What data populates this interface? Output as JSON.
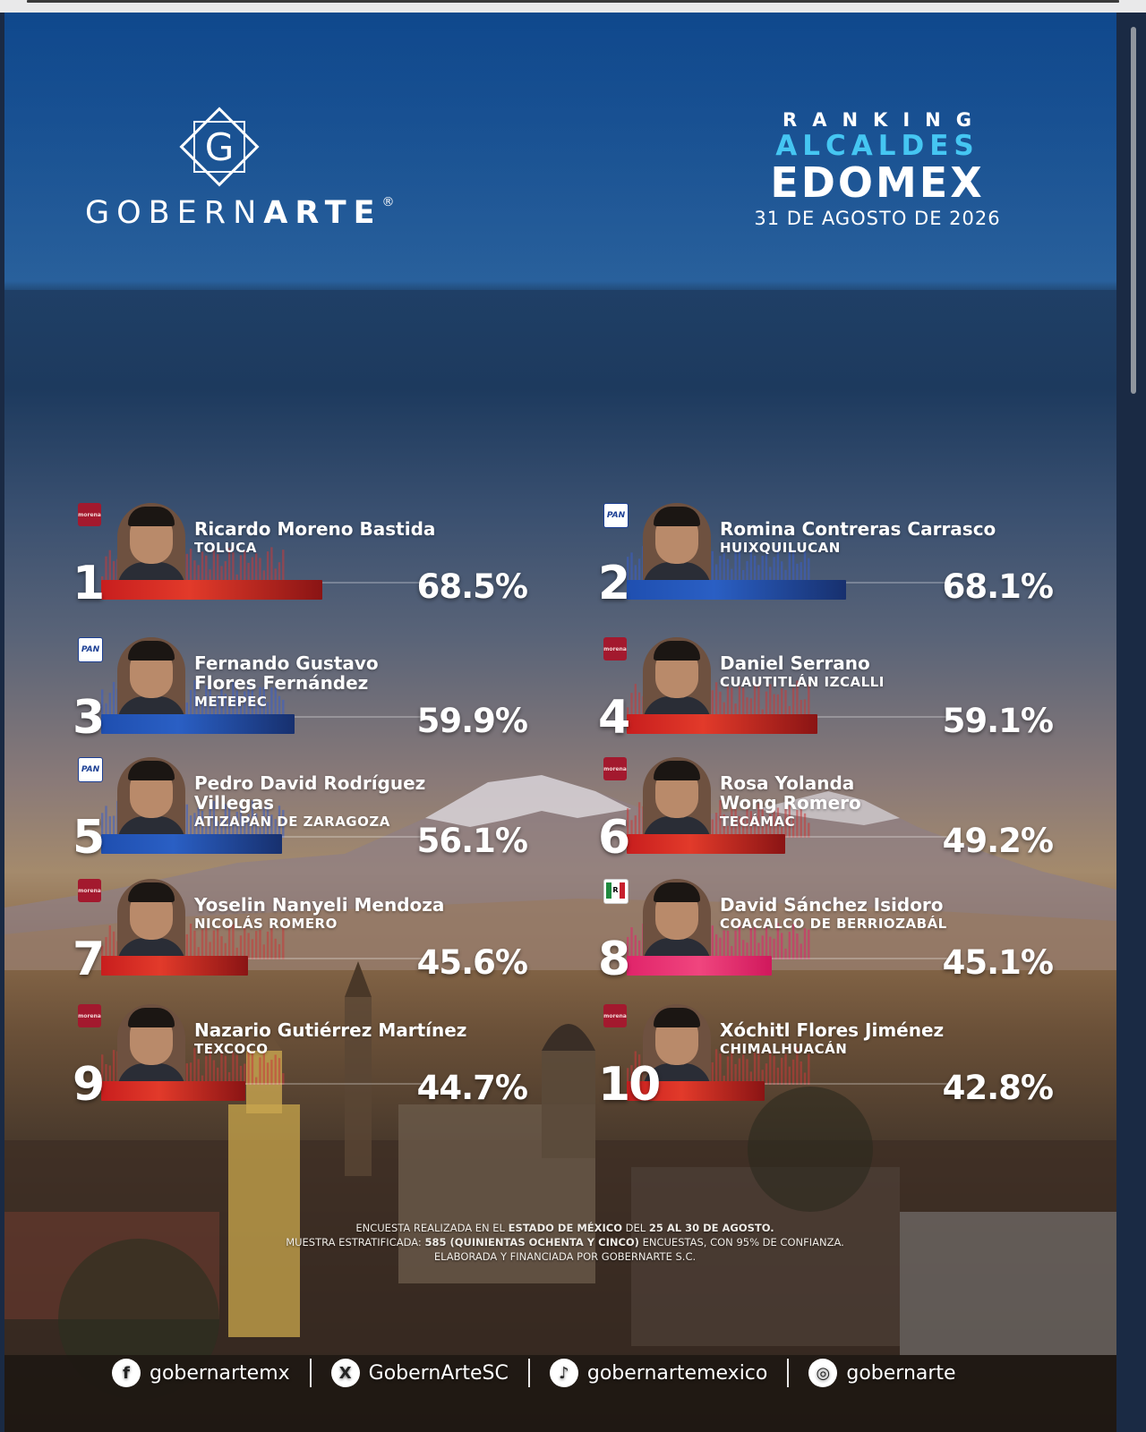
{
  "brand": {
    "mark_letter": "G",
    "word_regular": "GOBERN",
    "word_bold": "ARTE",
    "registered": "®"
  },
  "title": {
    "ranking": "RANKING",
    "alcaldes": "ALCALDES",
    "edomex": "EDOMEX",
    "date": "31 DE AGOSTO DE 2026"
  },
  "colors": {
    "accent_blue": "#45c6f2",
    "morena_red": "#c81e1e",
    "pan_blue": "#1f4fb0",
    "pri_pink": "#e0246a"
  },
  "chart_data": {
    "type": "bar",
    "xlim": [
      0,
      100
    ],
    "entries": [
      {
        "rank": "1",
        "name_lines": [
          "Ricardo Moreno Bastida"
        ],
        "municipality": "TOLUCA",
        "party": "morena",
        "value": 68.5,
        "label": "68.5%"
      },
      {
        "rank": "2",
        "name_lines": [
          "Romina Contreras Carrasco"
        ],
        "municipality": "HUIXQUILUCAN",
        "party": "PAN",
        "value": 68.1,
        "label": "68.1%"
      },
      {
        "rank": "3",
        "name_lines": [
          "Fernando Gustavo",
          "Flores Fernández"
        ],
        "municipality": "METEPEC",
        "party": "PAN",
        "value": 59.9,
        "label": "59.9%"
      },
      {
        "rank": "4",
        "name_lines": [
          "Daniel Serrano"
        ],
        "municipality": "CUAUTITLÁN IZCALLI",
        "party": "morena",
        "value": 59.1,
        "label": "59.1%"
      },
      {
        "rank": "5",
        "name_lines": [
          "Pedro David Rodríguez",
          "Villegas"
        ],
        "municipality": "ATIZAPÁN DE ZARAGOZA",
        "party": "PAN",
        "value": 56.1,
        "label": "56.1%"
      },
      {
        "rank": "6",
        "name_lines": [
          "Rosa Yolanda",
          "Wong Romero"
        ],
        "municipality": "TECÁMAC",
        "party": "morena",
        "value": 49.2,
        "label": "49.2%"
      },
      {
        "rank": "7",
        "name_lines": [
          "Yoselin Nanyeli Mendoza"
        ],
        "municipality": "NICOLÁS ROMERO",
        "party": "morena",
        "value": 45.6,
        "label": "45.6%"
      },
      {
        "rank": "8",
        "name_lines": [
          "David Sánchez Isidoro"
        ],
        "municipality": "COACALCO DE BERRIOZABÁL",
        "party": "PRI",
        "value": 45.1,
        "label": "45.1%"
      },
      {
        "rank": "9",
        "name_lines": [
          "Nazario Gutiérrez Martínez"
        ],
        "municipality": "TEXCOCO",
        "party": "morena",
        "value": 44.7,
        "label": "44.7%"
      },
      {
        "rank": "10",
        "name_lines": [
          "Xóchitl Flores Jiménez"
        ],
        "municipality": "CHIMALHUACÁN",
        "party": "morena",
        "value": 42.8,
        "label": "42.8%"
      }
    ]
  },
  "footnote": {
    "l1_a": "ENCUESTA REALIZADA EN EL ",
    "l1_b": "ESTADO DE MÉXICO",
    "l1_c": " DEL ",
    "l1_d": "25 AL 30 DE AGOSTO.",
    "l2_a": "MUESTRA ESTRATIFICADA: ",
    "l2_b": "585 (QUINIENTAS OCHENTA Y CINCO)",
    "l2_c": " ENCUESTAS, CON 95% DE CONFIANZA.",
    "l3": "ELABORADA Y FINANCIADA POR GOBERNARTE S.C."
  },
  "socials": [
    {
      "icon": "facebook-icon",
      "glyph": "f",
      "handle": "gobernartemx"
    },
    {
      "icon": "x-icon",
      "glyph": "X",
      "handle": "GobernArteSC"
    },
    {
      "icon": "tiktok-icon",
      "glyph": "♪",
      "handle": "gobernartemexico"
    },
    {
      "icon": "instagram-icon",
      "glyph": "◎",
      "handle": "gobernarte"
    }
  ]
}
